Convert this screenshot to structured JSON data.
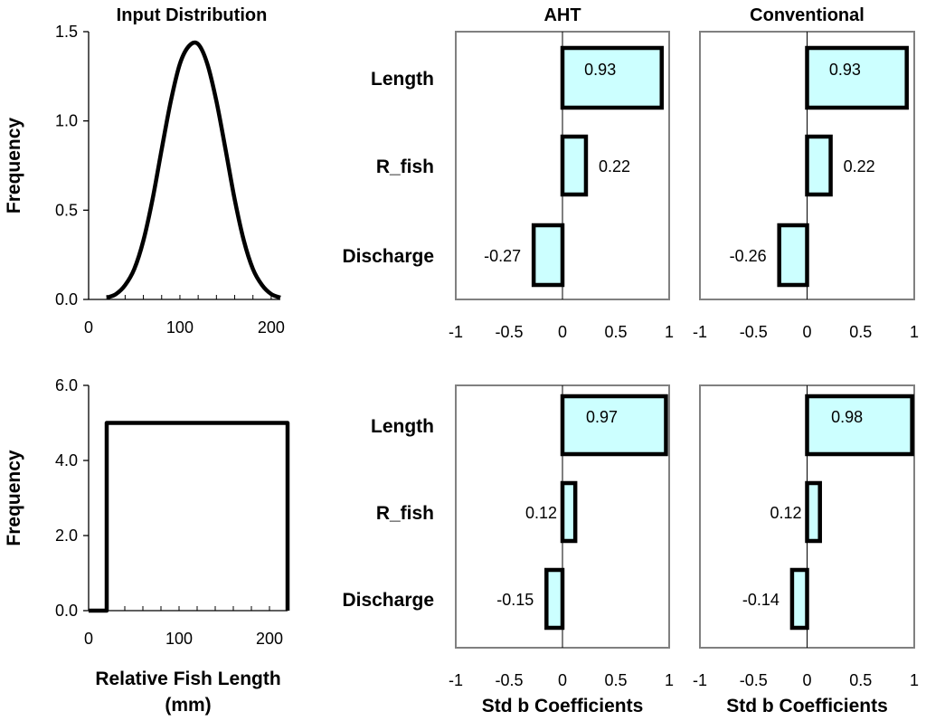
{
  "chart_data": [
    {
      "id": "dist_top",
      "type": "line",
      "title": "Input Distribution",
      "xlabel": "",
      "ylabel": "Frequency",
      "xlim": [
        0,
        210
      ],
      "ylim": [
        0,
        1.5
      ],
      "xticks": [
        0,
        100,
        200
      ],
      "yticks": [
        0.0,
        0.5,
        1.0,
        1.5
      ],
      "ytick_labels": [
        "0.0",
        "0.5",
        "1.0",
        "1.5"
      ],
      "series": [
        {
          "x": [
            20,
            30,
            40,
            50,
            60,
            70,
            80,
            90,
            100,
            110,
            120,
            130,
            140,
            150,
            160,
            170,
            180,
            190,
            200,
            210
          ],
          "y": [
            0.01,
            0.03,
            0.08,
            0.17,
            0.33,
            0.56,
            0.84,
            1.11,
            1.32,
            1.42,
            1.43,
            1.32,
            1.11,
            0.84,
            0.56,
            0.33,
            0.17,
            0.08,
            0.03,
            0.01
          ]
        }
      ]
    },
    {
      "id": "sens_top_aht",
      "type": "bar",
      "orientation": "horizontal",
      "title": "AHT",
      "categories": [
        "Length",
        "R_fish",
        "Discharge"
      ],
      "values": [
        0.93,
        0.22,
        -0.27
      ],
      "labels": [
        "0.93",
        "0.22",
        "-0.27"
      ],
      "xlim": [
        -1,
        1
      ],
      "xticks": [
        -1,
        -0.5,
        0,
        0.5,
        1
      ],
      "xlabel": ""
    },
    {
      "id": "sens_top_conv",
      "type": "bar",
      "orientation": "horizontal",
      "title": "Conventional",
      "categories": [
        "Length",
        "R_fish",
        "Discharge"
      ],
      "values": [
        0.93,
        0.22,
        -0.26
      ],
      "labels": [
        "0.93",
        "0.22",
        "-0.26"
      ],
      "xlim": [
        -1,
        1
      ],
      "xticks": [
        -1,
        -0.5,
        0,
        0.5,
        1
      ],
      "xlabel": ""
    },
    {
      "id": "dist_bottom",
      "type": "line",
      "title": "",
      "xlabel": "Relative Fish Length (mm)",
      "xlabel_lines": [
        "Relative Fish Length",
        "(mm)"
      ],
      "ylabel": "Frequency",
      "xlim": [
        0,
        220
      ],
      "ylim": [
        0,
        6
      ],
      "xticks": [
        0,
        100,
        200
      ],
      "yticks": [
        0.0,
        2.0,
        4.0,
        6.0
      ],
      "ytick_labels": [
        "0.0",
        "2.0",
        "4.0",
        "6.0"
      ],
      "series": [
        {
          "x": [
            0,
            20,
            20,
            220,
            220
          ],
          "y": [
            0,
            0,
            5,
            5,
            0
          ]
        }
      ]
    },
    {
      "id": "sens_bottom_aht",
      "type": "bar",
      "orientation": "horizontal",
      "title": "",
      "categories": [
        "Length",
        "R_fish",
        "Discharge"
      ],
      "values": [
        0.97,
        0.12,
        -0.15
      ],
      "labels": [
        "0.97",
        "0.12",
        "-0.15"
      ],
      "xlim": [
        -1,
        1
      ],
      "xticks": [
        -1,
        -0.5,
        0,
        0.5,
        1
      ],
      "xlabel": "Std b Coefficients"
    },
    {
      "id": "sens_bottom_conv",
      "type": "bar",
      "orientation": "horizontal",
      "title": "",
      "categories": [
        "Length",
        "R_fish",
        "Discharge"
      ],
      "values": [
        0.98,
        0.12,
        -0.14
      ],
      "labels": [
        "0.98",
        "0.12",
        "-0.14"
      ],
      "xlim": [
        -1,
        1
      ],
      "xticks": [
        -1,
        -0.5,
        0,
        0.5,
        1
      ],
      "xlabel": "Std b Coefficients"
    }
  ],
  "colors": {
    "bar_fill": "#ccffff",
    "stroke": "#000000",
    "frame": "#808080"
  }
}
